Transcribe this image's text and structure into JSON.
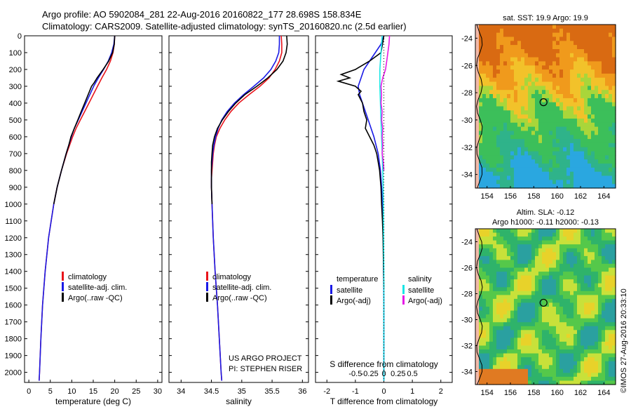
{
  "header": {
    "line1": "Argo profile: AO 5902084_281 22-Aug-2016 20160822_177 28.698S 158.834E",
    "line2": "Climatology: CARS2009. Satellite-adjusted climatology: synTS_20160820.nc (2.5d earlier)"
  },
  "colors": {
    "climatology": "#e8141b",
    "satellite": "#1a1ae6",
    "argo": "#000000",
    "sal_satellite": "#19e6e6",
    "sal_argo": "#e619e6"
  },
  "depth_axis": {
    "ticks": [
      0,
      100,
      200,
      300,
      400,
      500,
      600,
      700,
      800,
      900,
      1000,
      1100,
      1200,
      1300,
      1400,
      1500,
      1600,
      1700,
      1800,
      1900,
      2000
    ],
    "ylim": [
      0,
      2060
    ],
    "inverted": true
  },
  "chart_data": [
    {
      "type": "line",
      "id": "temperature",
      "xlabel": "temperature (deg C)",
      "xlim": [
        -1,
        31
      ],
      "xticks": [
        0,
        5,
        10,
        15,
        20,
        25,
        30
      ],
      "legend": {
        "placement": "middle-left",
        "entries": [
          "climatology",
          "satellite-adj. clim.",
          "Argo(..raw -QC)"
        ]
      },
      "series": [
        {
          "name": "climatology",
          "color": "#e8141b",
          "depth": [
            0,
            50,
            100,
            150,
            200,
            250,
            300,
            350,
            400,
            450,
            500,
            550,
            600,
            650,
            700,
            800,
            900,
            1000,
            1200,
            1400,
            1600,
            1800,
            2000,
            2050
          ],
          "values": [
            20.0,
            19.9,
            19.6,
            19.0,
            18.1,
            17.0,
            16.0,
            15.0,
            14.0,
            13.0,
            12.0,
            11.0,
            10.2,
            9.5,
            8.8,
            7.6,
            6.6,
            5.8,
            4.6,
            3.8,
            3.2,
            2.8,
            2.5,
            2.4
          ]
        },
        {
          "name": "satellite-adj. clim.",
          "color": "#1a1ae6",
          "depth": [
            0,
            50,
            100,
            150,
            200,
            250,
            300,
            350,
            400,
            450,
            500,
            550,
            600,
            650,
            700,
            800,
            900,
            1000,
            1200,
            1400,
            1600,
            1800,
            2000,
            2050
          ],
          "values": [
            20.0,
            19.8,
            19.3,
            18.5,
            17.4,
            16.2,
            15.1,
            14.2,
            13.3,
            12.4,
            11.5,
            10.6,
            9.9,
            9.3,
            8.7,
            7.6,
            6.6,
            5.8,
            4.6,
            3.8,
            3.2,
            2.8,
            2.5,
            2.4
          ]
        },
        {
          "name": "Argo(..raw -QC)",
          "color": "#000000",
          "depth": [
            0,
            50,
            100,
            150,
            200,
            250,
            280,
            300,
            350,
            400,
            450,
            500,
            550,
            600,
            650,
            700,
            800,
            900,
            1000
          ],
          "values": [
            20.0,
            19.9,
            19.5,
            18.6,
            17.3,
            15.9,
            15.2,
            14.6,
            13.8,
            13.0,
            12.2,
            11.4,
            10.6,
            9.8,
            9.3,
            8.7,
            7.6,
            6.6,
            5.8
          ]
        }
      ]
    },
    {
      "type": "line",
      "id": "salinity",
      "xlabel": "salinity",
      "xlim": [
        33.8,
        36.1
      ],
      "xticks": [
        34,
        34.5,
        35,
        35.5,
        36
      ],
      "legend": {
        "placement": "middle-left",
        "entries": [
          "climatology",
          "satellite-adj. clim.",
          "Argo(..raw -QC)"
        ]
      },
      "annotation": [
        "US ARGO PROJECT",
        "PI: STEPHEN RISER"
      ],
      "series": [
        {
          "name": "climatology",
          "color": "#e8141b",
          "depth": [
            0,
            50,
            100,
            150,
            200,
            250,
            300,
            350,
            400,
            450,
            500,
            550,
            600,
            650,
            700,
            750,
            800,
            850,
            900,
            1000,
            1200,
            1400,
            1600,
            1800,
            2000,
            2050
          ],
          "values": [
            35.65,
            35.66,
            35.66,
            35.62,
            35.55,
            35.45,
            35.3,
            35.12,
            34.95,
            34.82,
            34.72,
            34.64,
            34.58,
            34.55,
            34.53,
            34.52,
            34.51,
            34.5,
            34.5,
            34.51,
            34.53,
            34.56,
            34.6,
            34.63,
            34.66,
            34.67
          ]
        },
        {
          "name": "satellite-adj. clim.",
          "color": "#1a1ae6",
          "depth": [
            0,
            50,
            100,
            150,
            200,
            250,
            300,
            350,
            400,
            450,
            500,
            550,
            600,
            650,
            700,
            750,
            800,
            850,
            900,
            1000,
            1200,
            1400,
            1600,
            1800,
            2000,
            2050
          ],
          "values": [
            35.62,
            35.62,
            35.61,
            35.56,
            35.48,
            35.36,
            35.2,
            35.03,
            34.88,
            34.76,
            34.67,
            34.61,
            34.57,
            34.54,
            34.52,
            34.51,
            34.5,
            34.5,
            34.5,
            34.51,
            34.53,
            34.56,
            34.6,
            34.63,
            34.66,
            34.67
          ]
        },
        {
          "name": "Argo(..raw -QC)",
          "color": "#000000",
          "depth": [
            0,
            50,
            100,
            150,
            200,
            250,
            300,
            350,
            400,
            450,
            500,
            550,
            600,
            650,
            700,
            750,
            800,
            850,
            900,
            1000
          ],
          "values": [
            35.74,
            35.75,
            35.73,
            35.68,
            35.58,
            35.43,
            35.25,
            35.05,
            34.9,
            34.78,
            34.68,
            34.6,
            34.55,
            34.52,
            34.51,
            34.5,
            34.5,
            34.5,
            34.5,
            34.51
          ]
        }
      ]
    },
    {
      "type": "line",
      "id": "difference",
      "xlabel": "T difference from climatology",
      "xlabel_top": "S difference from climatology",
      "xlim": [
        -2.4,
        2.4
      ],
      "xticks": [
        -2,
        -1,
        0,
        1,
        2
      ],
      "xticks_top": [
        -0.5,
        -0.25,
        0,
        0.25,
        0.5
      ],
      "legend": {
        "placement": "middle",
        "groups": [
          {
            "title": "temperature",
            "entries": [
              "satellite",
              "Argo(-adj)"
            ]
          },
          {
            "title": "salinity",
            "entries": [
              "satellite",
              "Argo(-adj)"
            ]
          }
        ]
      },
      "series": [
        {
          "name": "temperature satellite",
          "color": "#1a1ae6",
          "depth": [
            0,
            50,
            100,
            150,
            200,
            250,
            300,
            350,
            400,
            500,
            600,
            700,
            800,
            900,
            1000,
            1100,
            1200,
            1400,
            1600,
            1800,
            2000,
            2050
          ],
          "values": [
            0,
            -0.1,
            -0.3,
            -0.5,
            -0.7,
            -0.8,
            -0.9,
            -0.85,
            -0.75,
            -0.55,
            -0.35,
            -0.2,
            -0.12,
            -0.08,
            -0.05,
            -0.03,
            -0.02,
            -0.01,
            0,
            0,
            0,
            0
          ]
        },
        {
          "name": "temperature Argo(-adj)",
          "color": "#000000",
          "depth": [
            0,
            50,
            100,
            150,
            200,
            230,
            250,
            270,
            300,
            330,
            350,
            400,
            450,
            500,
            550,
            600,
            650,
            700,
            750,
            800,
            900,
            1000,
            1100,
            1200,
            1300,
            1400,
            1500
          ],
          "values": [
            0,
            -0.05,
            -0.1,
            -0.5,
            -1.0,
            -1.5,
            -1.2,
            -1.6,
            -1.0,
            -0.8,
            -0.9,
            -0.75,
            -0.7,
            -0.6,
            -0.65,
            -0.5,
            -0.35,
            -0.25,
            -0.2,
            -0.15,
            -0.1,
            -0.08,
            -0.05,
            -0.03,
            -0.02,
            -0.01,
            0
          ]
        },
        {
          "name": "salinity satellite",
          "color": "#19e6e6",
          "depth": [
            0,
            50,
            100,
            150,
            200,
            300,
            400,
            500,
            600,
            700,
            800,
            900,
            1000,
            1200,
            1400,
            1600,
            1800,
            2000,
            2050
          ],
          "values": [
            -0.03,
            -0.04,
            -0.05,
            -0.06,
            -0.07,
            -0.07,
            -0.06,
            -0.05,
            -0.04,
            -0.03,
            -0.02,
            -0.015,
            -0.01,
            -0.005,
            0,
            0,
            0,
            0,
            0
          ]
        },
        {
          "name": "salinity Argo(-adj)",
          "color": "#e619e6",
          "depth": [
            0,
            50,
            100,
            150,
            200,
            250,
            300,
            350,
            400,
            450,
            500,
            550,
            600,
            650,
            700,
            750,
            800
          ],
          "values": [
            0.1,
            0.09,
            0.07,
            0.05,
            0.03,
            -0.02,
            -0.05,
            -0.04,
            -0.05,
            -0.03,
            -0.04,
            -0.02,
            -0.03,
            -0.02,
            -0.03,
            -0.01,
            0
          ]
        }
      ]
    },
    {
      "type": "heatmap",
      "id": "sst_map",
      "title": "sat. SST: 19.9 Argo: 19.9",
      "xlim": [
        153,
        165
      ],
      "ylim": [
        -35,
        -23
      ],
      "xticks": [
        154,
        156,
        158,
        160,
        162,
        164
      ],
      "yticks": [
        -24,
        -26,
        -28,
        -30,
        -32,
        -34
      ],
      "marker": {
        "lon": 158.834,
        "lat": -28.698
      }
    },
    {
      "type": "heatmap",
      "id": "sla_map",
      "title": "Altim. SLA: -0.12",
      "subtitle": "Argo h1000: -0.11 h2000: -0.13",
      "xlim": [
        153,
        165
      ],
      "ylim": [
        -35,
        -23
      ],
      "xticks": [
        154,
        156,
        158,
        160,
        162,
        164
      ],
      "yticks": [
        -24,
        -26,
        -28,
        -30,
        -32,
        -34
      ],
      "marker": {
        "lon": 158.834,
        "lat": -28.698
      }
    }
  ],
  "credit": "©IMOS 27-Aug-2016 20:33:10"
}
